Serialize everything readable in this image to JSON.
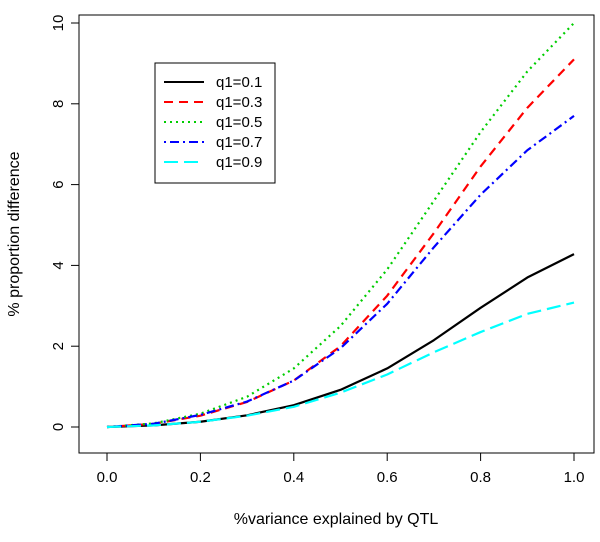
{
  "chart_data": {
    "type": "line",
    "title": "",
    "xlabel": "%variance explained by QTL",
    "ylabel": "% proportion difference",
    "xlim": [
      0,
      1
    ],
    "ylim": [
      0,
      10
    ],
    "xticks": [
      "0.0",
      "0.2",
      "0.4",
      "0.6",
      "0.8",
      "1.0"
    ],
    "yticks": [
      "0",
      "2",
      "4",
      "6",
      "8",
      "10"
    ],
    "grid": false,
    "legend_position": "top-left",
    "x": [
      0,
      0.1,
      0.2,
      0.3,
      0.4,
      0.5,
      0.6,
      0.7,
      0.8,
      0.9,
      1.0
    ],
    "series": [
      {
        "name": "q1=0.1",
        "color": "#000000",
        "dash": "solid",
        "values": [
          0,
          0.04,
          0.13,
          0.29,
          0.54,
          0.92,
          1.45,
          2.15,
          2.95,
          3.7,
          4.28
        ]
      },
      {
        "name": "q1=0.3",
        "color": "#ff0000",
        "dash": "dashed",
        "values": [
          0,
          0.08,
          0.28,
          0.62,
          1.15,
          2.0,
          3.25,
          4.8,
          6.45,
          7.9,
          9.1
        ]
      },
      {
        "name": "q1=0.5",
        "color": "#00cd00",
        "dash": "dotted",
        "values": [
          0,
          0.09,
          0.33,
          0.75,
          1.45,
          2.5,
          3.9,
          5.6,
          7.3,
          8.8,
          10.0
        ]
      },
      {
        "name": "q1=0.7",
        "color": "#0000ff",
        "dash": "dotdash",
        "values": [
          0,
          0.08,
          0.3,
          0.63,
          1.15,
          1.95,
          3.05,
          4.45,
          5.75,
          6.85,
          7.7
        ]
      },
      {
        "name": "q1=0.9",
        "color": "#00ffff",
        "dash": "longdash",
        "values": [
          0,
          0.04,
          0.13,
          0.28,
          0.5,
          0.85,
          1.3,
          1.85,
          2.35,
          2.8,
          3.08
        ]
      }
    ]
  }
}
